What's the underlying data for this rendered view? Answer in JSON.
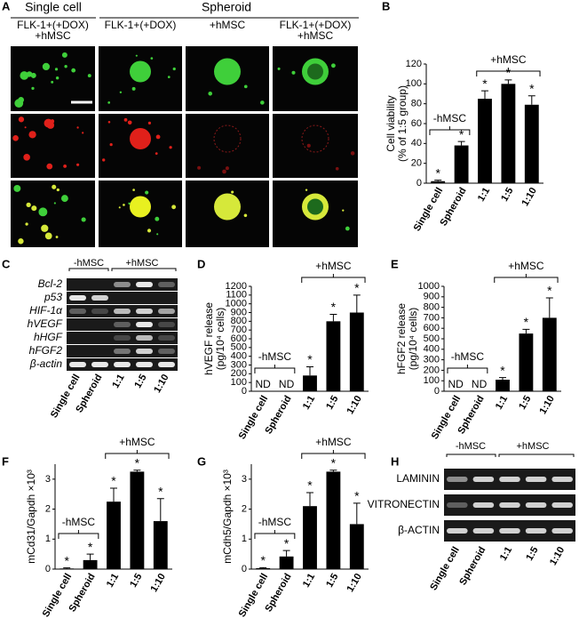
{
  "panel_labels": [
    "A",
    "B",
    "C",
    "D",
    "E",
    "F",
    "G",
    "H"
  ],
  "panel_a": {
    "top_headers": [
      "Single cell",
      "Spheroid"
    ],
    "column_headers": [
      [
        "FLK-1+(+DOX)",
        "+hMSC"
      ],
      [
        "FLK-1+(+DOX)"
      ],
      [
        "+hMSC"
      ],
      [
        "FLK-1+(+DOX)",
        "+hMSC"
      ]
    ]
  },
  "panel_c": {
    "groups": [
      "-hMSC",
      "+hMSC"
    ],
    "rows": [
      "Bcl-2",
      "p53",
      "HIF-1α",
      "hVEGF",
      "hHGF",
      "hFGF2",
      "β-actin"
    ],
    "columns": [
      "Single cell",
      "Spheroid",
      "1:1",
      "1:5",
      "1:10"
    ]
  },
  "panel_h": {
    "groups": [
      "-hMSC",
      "+hMSC"
    ],
    "rows": [
      "LAMININ",
      "VITRONECTIN",
      "β-ACTIN"
    ],
    "columns": [
      "Single cell",
      "Spheroid",
      "1:1",
      "1:5",
      "1:10"
    ]
  },
  "chart_data": [
    {
      "type": "bar",
      "y_label": [
        "Cell viability",
        "(% of 1:5 group)"
      ],
      "categories": [
        "Single cell",
        "Spheroid",
        "1:1",
        "1:5",
        "1:10"
      ],
      "values": [
        2,
        38,
        85,
        100,
        79
      ],
      "errors": [
        1,
        4,
        8,
        4,
        9
      ],
      "annotations": [
        "*",
        "*",
        "*",
        "*",
        "*"
      ],
      "group_labels": [
        "-hMSC",
        "+hMSC"
      ],
      "color": "#000000",
      "ylim": [
        0,
        120
      ],
      "yticks": [
        0,
        20,
        40,
        60,
        80,
        100,
        120
      ]
    },
    {
      "type": "bar",
      "y_label": [
        "hVEGF release",
        "(pg/10⁴ cells)"
      ],
      "categories": [
        "Single cell",
        "Spheroid",
        "1:1",
        "1:5",
        "1:10"
      ],
      "values": [
        null,
        null,
        180,
        800,
        900
      ],
      "value_labels": [
        "ND",
        "ND",
        null,
        null,
        null
      ],
      "errors": [
        null,
        null,
        100,
        80,
        200
      ],
      "annotations": [
        null,
        null,
        "*",
        "*",
        "*"
      ],
      "group_labels": [
        "-hMSC",
        "+hMSC"
      ],
      "color": "#000000",
      "ylim": [
        0,
        1200
      ],
      "yticks": [
        0,
        100,
        200,
        300,
        400,
        500,
        600,
        700,
        800,
        900,
        1000,
        1100,
        1200
      ]
    },
    {
      "type": "bar",
      "y_label": [
        "hFGF2 release",
        "(pg/10⁴ cells)"
      ],
      "categories": [
        "Single cell",
        "Spheroid",
        "1:1",
        "1:5",
        "1:10"
      ],
      "values": [
        null,
        null,
        110,
        550,
        700
      ],
      "value_labels": [
        "ND",
        "ND",
        null,
        null,
        null
      ],
      "errors": [
        null,
        null,
        20,
        40,
        190
      ],
      "annotations": [
        null,
        null,
        "*",
        "*",
        "*"
      ],
      "group_labels": [
        "-hMSC",
        "+hMSC"
      ],
      "color": "#000000",
      "ylim": [
        0,
        1000
      ],
      "yticks": [
        0,
        100,
        200,
        300,
        400,
        500,
        600,
        700,
        800,
        900,
        1000
      ]
    },
    {
      "type": "bar",
      "y_label": [
        "mCd31/Gapdh ×10³"
      ],
      "categories": [
        "Single cell",
        "Spheroid",
        "1:1",
        "1:5",
        "1:10"
      ],
      "values": [
        0.02,
        0.3,
        2.25,
        3.25,
        1.6
      ],
      "errors": [
        0.02,
        0.2,
        0.45,
        0.05,
        0.75
      ],
      "annotations": [
        "*",
        "*",
        "*",
        "*",
        "*"
      ],
      "group_labels": [
        "-hMSC",
        "+hMSC"
      ],
      "color": "#000000",
      "ylim": [
        0,
        3.5
      ],
      "yticks": [
        0,
        1,
        2,
        3
      ]
    },
    {
      "type": "bar",
      "y_label": [
        "mCdh5/Gapdh ×10³"
      ],
      "categories": [
        "Single cell",
        "Spheroid",
        "1:1",
        "1:5",
        "1:10"
      ],
      "values": [
        0.03,
        0.42,
        2.1,
        3.25,
        1.5
      ],
      "errors": [
        0.02,
        0.2,
        0.45,
        0.05,
        0.7
      ],
      "annotations": [
        "*",
        "*",
        "*",
        "*",
        "*"
      ],
      "group_labels": [
        "-hMSC",
        "+hMSC"
      ],
      "color": "#000000",
      "ylim": [
        0,
        3.5
      ],
      "yticks": [
        0,
        1,
        2,
        3
      ]
    }
  ]
}
